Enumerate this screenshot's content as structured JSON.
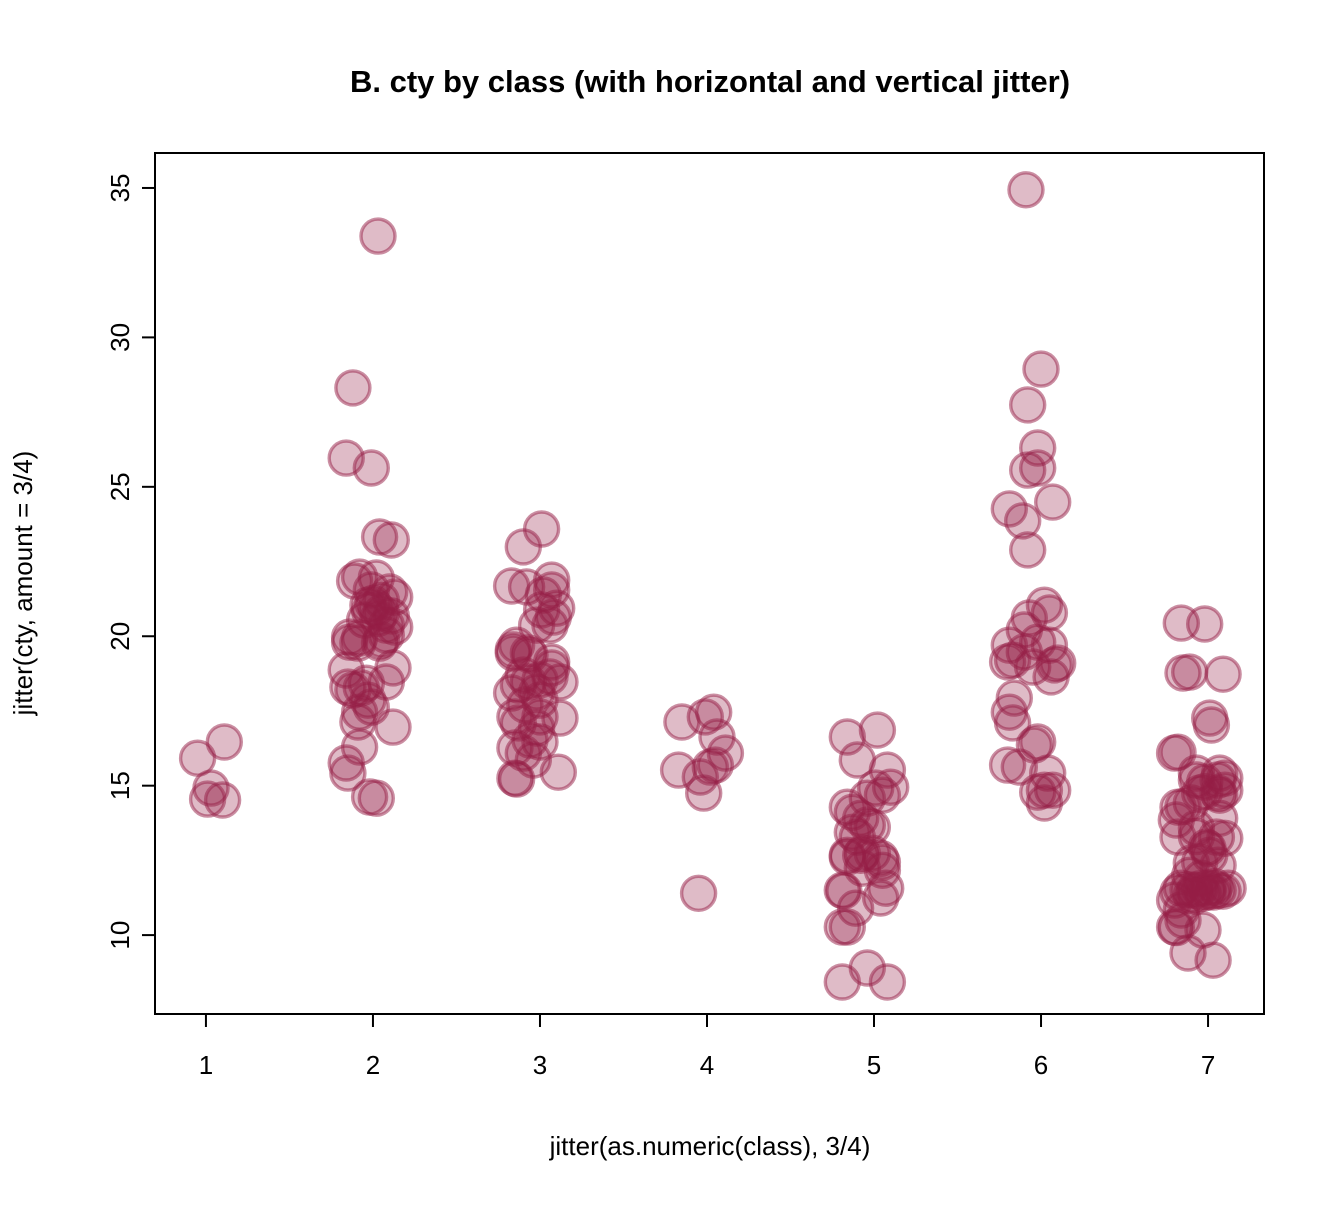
{
  "title": "B. cty by class (with horizontal and vertical jitter)",
  "chart_data": {
    "type": "scatter",
    "title": "B. cty by class (with horizontal and vertical jitter)",
    "xlabel": "jitter(as.numeric(class), 3/4)",
    "ylabel": "jitter(cty, amount = 3/4)",
    "xlim": [
      0.695,
      7.335
    ],
    "ylim": [
      7.36,
      36.17
    ],
    "xticks": [
      1,
      2,
      3,
      4,
      5,
      6,
      7
    ],
    "yticks": [
      10,
      15,
      20,
      25,
      30,
      35
    ],
    "grid": false,
    "legend": "none",
    "point_color": "#961E46",
    "fill_opacity": 0.3,
    "stroke_opacity": 0.5,
    "points": [
      [
        1.11,
        16.46
      ],
      [
        0.95,
        15.92
      ],
      [
        1.03,
        14.92
      ],
      [
        1.01,
        14.55
      ],
      [
        1.1,
        14.52
      ],
      [
        2.03,
        33.39
      ],
      [
        1.88,
        28.31
      ],
      [
        1.84,
        25.96
      ],
      [
        1.99,
        25.63
      ],
      [
        2.04,
        23.32
      ],
      [
        2.11,
        23.22
      ],
      [
        1.89,
        21.85
      ],
      [
        1.92,
        21.98
      ],
      [
        2.02,
        21.95
      ],
      [
        1.99,
        21.55
      ],
      [
        2.1,
        21.48
      ],
      [
        2.13,
        21.31
      ],
      [
        1.97,
        21.04
      ],
      [
        2.02,
        20.94
      ],
      [
        2.05,
        20.78
      ],
      [
        2.11,
        20.68
      ],
      [
        1.95,
        20.54
      ],
      [
        2.08,
        20.37
      ],
      [
        2.13,
        20.31
      ],
      [
        1.86,
        19.97
      ],
      [
        1.92,
        19.94
      ],
      [
        2.05,
        19.87
      ],
      [
        2.08,
        20.04
      ],
      [
        2.0,
        21.1
      ],
      [
        2.05,
        21.2
      ],
      [
        1.98,
        20.85
      ],
      [
        2.03,
        20.6
      ],
      [
        1.86,
        19.8
      ],
      [
        1.91,
        19.77
      ],
      [
        2.04,
        19.77
      ],
      [
        1.84,
        18.87
      ],
      [
        2.12,
        18.94
      ],
      [
        2.08,
        18.47
      ],
      [
        1.85,
        18.3
      ],
      [
        1.88,
        18.2
      ],
      [
        1.93,
        18.27
      ],
      [
        1.96,
        18.43
      ],
      [
        1.97,
        17.86
      ],
      [
        1.99,
        17.63
      ],
      [
        1.92,
        17.46
      ],
      [
        1.91,
        17.13
      ],
      [
        2.12,
        16.96
      ],
      [
        1.92,
        16.29
      ],
      [
        1.84,
        15.76
      ],
      [
        1.85,
        15.42
      ],
      [
        1.98,
        14.62
      ],
      [
        2.02,
        14.58
      ],
      [
        3.01,
        23.59
      ],
      [
        2.9,
        22.99
      ],
      [
        2.83,
        21.68
      ],
      [
        2.92,
        21.65
      ],
      [
        3.07,
        21.88
      ],
      [
        3.07,
        21.55
      ],
      [
        3.02,
        21.38
      ],
      [
        3.01,
        20.88
      ],
      [
        3.1,
        20.94
      ],
      [
        3.08,
        20.64
      ],
      [
        2.98,
        20.37
      ],
      [
        3.06,
        20.37
      ],
      [
        2.86,
        19.7
      ],
      [
        2.84,
        19.54
      ],
      [
        2.93,
        19.44
      ],
      [
        3.07,
        19.14
      ],
      [
        2.84,
        19.44
      ],
      [
        2.94,
        19.37
      ],
      [
        3.07,
        18.94
      ],
      [
        2.9,
        18.7
      ],
      [
        2.93,
        18.47
      ],
      [
        2.87,
        18.37
      ],
      [
        3.0,
        18.54
      ],
      [
        3.06,
        18.64
      ],
      [
        3.12,
        18.47
      ],
      [
        2.83,
        18.1
      ],
      [
        2.98,
        18.13
      ],
      [
        3.0,
        17.86
      ],
      [
        2.91,
        17.7
      ],
      [
        2.85,
        17.3
      ],
      [
        3.0,
        17.3
      ],
      [
        3.12,
        17.26
      ],
      [
        2.87,
        17.1
      ],
      [
        2.98,
        16.93
      ],
      [
        2.94,
        16.53
      ],
      [
        3.0,
        16.46
      ],
      [
        2.85,
        16.26
      ],
      [
        2.9,
        16.09
      ],
      [
        2.96,
        15.86
      ],
      [
        2.85,
        15.25
      ],
      [
        2.86,
        15.22
      ],
      [
        3.11,
        15.45
      ],
      [
        4.04,
        17.46
      ],
      [
        3.99,
        17.3
      ],
      [
        3.85,
        17.13
      ],
      [
        4.06,
        16.63
      ],
      [
        4.11,
        16.09
      ],
      [
        4.05,
        15.69
      ],
      [
        4.02,
        15.62
      ],
      [
        3.83,
        15.52
      ],
      [
        3.96,
        15.29
      ],
      [
        3.98,
        14.75
      ],
      [
        3.95,
        11.4
      ],
      [
        4.84,
        16.63
      ],
      [
        5.02,
        16.86
      ],
      [
        4.9,
        15.86
      ],
      [
        5.08,
        15.52
      ],
      [
        5.01,
        14.92
      ],
      [
        5.1,
        14.95
      ],
      [
        5.05,
        14.68
      ],
      [
        4.96,
        14.58
      ],
      [
        4.84,
        14.28
      ],
      [
        4.87,
        14.11
      ],
      [
        4.92,
        13.91
      ],
      [
        4.96,
        13.68
      ],
      [
        4.87,
        13.44
      ],
      [
        4.9,
        13.28
      ],
      [
        4.99,
        13.61
      ],
      [
        4.84,
        12.67
      ],
      [
        4.93,
        12.74
      ],
      [
        5.04,
        12.57
      ],
      [
        4.84,
        12.61
      ],
      [
        4.92,
        12.67
      ],
      [
        4.99,
        12.74
      ],
      [
        5.05,
        12.44
      ],
      [
        4.93,
        12.24
      ],
      [
        5.05,
        12.17
      ],
      [
        4.81,
        11.5
      ],
      [
        4.82,
        11.48
      ],
      [
        5.07,
        11.57
      ],
      [
        5.04,
        11.24
      ],
      [
        4.89,
        10.9
      ],
      [
        4.84,
        10.27
      ],
      [
        4.81,
        10.27
      ],
      [
        4.96,
        8.9
      ],
      [
        4.81,
        8.43
      ],
      [
        5.08,
        8.43
      ],
      [
        5.91,
        34.94
      ],
      [
        6.0,
        28.94
      ],
      [
        5.92,
        27.74
      ],
      [
        5.98,
        26.3
      ],
      [
        5.92,
        25.56
      ],
      [
        5.98,
        25.63
      ],
      [
        6.07,
        24.49
      ],
      [
        5.81,
        24.26
      ],
      [
        5.89,
        23.86
      ],
      [
        5.92,
        22.89
      ],
      [
        6.02,
        21.04
      ],
      [
        6.05,
        20.78
      ],
      [
        5.93,
        20.61
      ],
      [
        5.9,
        20.21
      ],
      [
        5.98,
        19.8
      ],
      [
        6.05,
        19.7
      ],
      [
        5.81,
        19.7
      ],
      [
        5.9,
        19.47
      ],
      [
        5.83,
        19.2
      ],
      [
        5.8,
        19.14
      ],
      [
        5.95,
        18.97
      ],
      [
        6.08,
        19.04
      ],
      [
        6.1,
        19.1
      ],
      [
        6.06,
        18.64
      ],
      [
        5.84,
        17.93
      ],
      [
        5.81,
        17.46
      ],
      [
        5.83,
        17.1
      ],
      [
        5.96,
        16.36
      ],
      [
        5.98,
        16.46
      ],
      [
        5.8,
        15.69
      ],
      [
        5.87,
        15.62
      ],
      [
        6.04,
        15.42
      ],
      [
        6.02,
        14.85
      ],
      [
        5.98,
        14.78
      ],
      [
        6.07,
        14.85
      ],
      [
        6.02,
        14.42
      ],
      [
        6.84,
        20.44
      ],
      [
        6.98,
        20.41
      ],
      [
        6.85,
        18.77
      ],
      [
        6.89,
        18.8
      ],
      [
        7.09,
        18.73
      ],
      [
        7.01,
        17.26
      ],
      [
        7.02,
        17.03
      ],
      [
        6.8,
        16.09
      ],
      [
        6.82,
        16.12
      ],
      [
        6.93,
        15.42
      ],
      [
        6.98,
        15.12
      ],
      [
        7.07,
        15.42
      ],
      [
        6.93,
        15.19
      ],
      [
        7.06,
        15.19
      ],
      [
        7.1,
        15.25
      ],
      [
        6.95,
        14.75
      ],
      [
        7.06,
        14.75
      ],
      [
        7.1,
        14.85
      ],
      [
        6.82,
        14.28
      ],
      [
        6.9,
        14.42
      ],
      [
        6.81,
        13.85
      ],
      [
        7.07,
        13.91
      ],
      [
        6.93,
        13.58
      ],
      [
        7.05,
        13.28
      ],
      [
        7.1,
        13.24
      ],
      [
        6.82,
        13.28
      ],
      [
        6.99,
        12.94
      ],
      [
        7.01,
        12.67
      ],
      [
        6.9,
        12.41
      ],
      [
        6.95,
        12.44
      ],
      [
        7.06,
        12.34
      ],
      [
        6.89,
        12.0
      ],
      [
        6.96,
        11.9
      ],
      [
        6.84,
        11.57
      ],
      [
        6.92,
        11.5
      ],
      [
        7.0,
        11.57
      ],
      [
        7.06,
        11.5
      ],
      [
        6.82,
        11.44
      ],
      [
        6.9,
        11.34
      ],
      [
        6.97,
        11.4
      ],
      [
        7.03,
        11.44
      ],
      [
        7.09,
        11.47
      ],
      [
        7.12,
        11.57
      ],
      [
        6.8,
        11.17
      ],
      [
        6.84,
        10.84
      ],
      [
        6.85,
        10.5
      ],
      [
        6.8,
        10.27
      ],
      [
        6.81,
        10.25
      ],
      [
        6.97,
        10.17
      ],
      [
        6.88,
        9.4
      ],
      [
        7.03,
        9.16
      ],
      [
        6.95,
        11.55
      ],
      [
        7.0,
        11.45
      ],
      [
        6.88,
        11.52
      ],
      [
        7.04,
        11.62
      ],
      [
        6.98,
        14.8
      ],
      [
        7.07,
        14.68
      ],
      [
        6.93,
        13.3
      ],
      [
        7.0,
        12.9
      ],
      [
        6.85,
        14.3
      ],
      [
        6.92,
        11.3
      ]
    ]
  }
}
